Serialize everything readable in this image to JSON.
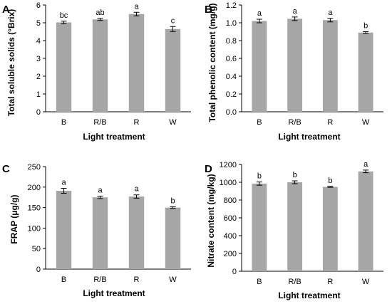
{
  "chart_data": [
    {
      "type": "bar",
      "panel": "A",
      "categories": [
        "B",
        "R/B",
        "R",
        "W"
      ],
      "values": [
        5.02,
        5.19,
        5.49,
        4.65
      ],
      "errors": [
        0.07,
        0.06,
        0.1,
        0.14
      ],
      "significance": [
        "bc",
        "ab",
        "a",
        "c"
      ],
      "xlabel": "Light treatment",
      "ylabel": "Total soluble solids (°Brix)",
      "ylim": [
        0,
        6
      ],
      "yticks": [
        "0",
        "1",
        "2",
        "3",
        "4",
        "5",
        "6"
      ],
      "bar_color": "#a6a6a6",
      "grid": false,
      "legend": "none"
    },
    {
      "type": "bar",
      "panel": "B",
      "categories": [
        "B",
        "R/B",
        "R",
        "W"
      ],
      "values": [
        1.02,
        1.045,
        1.03,
        0.89
      ],
      "errors": [
        0.02,
        0.02,
        0.02,
        0.01
      ],
      "significance": [
        "a",
        "a",
        "a",
        "b"
      ],
      "xlabel": "Light treatment",
      "ylabel": "Total phenolic content (mg/g)",
      "ylim": [
        0,
        1.2
      ],
      "yticks": [
        "0.0",
        "0.2",
        "0.4",
        "0.6",
        "0.8",
        "1.0",
        "1.2"
      ],
      "bar_color": "#a6a6a6",
      "grid": false,
      "legend": "none"
    },
    {
      "type": "bar",
      "panel": "C",
      "categories": [
        "B",
        "R/B",
        "R",
        "W"
      ],
      "values": [
        191,
        175,
        177,
        150
      ],
      "errors": [
        6,
        3,
        4,
        2
      ],
      "significance": [
        "a",
        "a",
        "a",
        "b"
      ],
      "xlabel": "Light treatment",
      "ylabel": "FRAP (μg/g)",
      "ylim": [
        0,
        250
      ],
      "yticks": [
        "0",
        "50",
        "100",
        "150",
        "200",
        "250"
      ],
      "bar_color": "#a6a6a6",
      "grid": false,
      "legend": "none"
    },
    {
      "type": "bar",
      "panel": "D",
      "categories": [
        "B",
        "R/B",
        "R",
        "W"
      ],
      "values": [
        985,
        1000,
        948,
        1122
      ],
      "errors": [
        18,
        16,
        5,
        15
      ],
      "significance": [
        "b",
        "b",
        "b",
        "a"
      ],
      "xlabel": "Light treatment",
      "ylabel": "Nitrate content (mg/kg)",
      "ylim": [
        0,
        1200
      ],
      "yticks": [
        "0",
        "200",
        "400",
        "600",
        "800",
        "1000",
        "1200"
      ],
      "bar_color": "#a6a6a6",
      "grid": false,
      "legend": "none"
    }
  ]
}
